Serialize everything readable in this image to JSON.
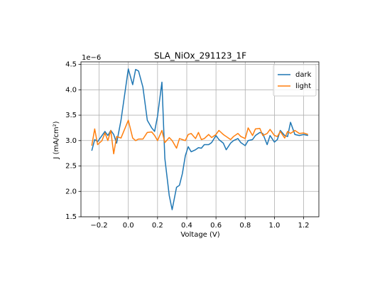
{
  "chart_data": {
    "type": "line",
    "title": "SLA_NiOx_291123_1F",
    "x_label": "Voltage (V)",
    "y_label": "J (mA/cm²)",
    "y_offset_label": "1e−6",
    "x": [
      -0.25,
      -0.23,
      -0.21,
      -0.18,
      -0.16,
      -0.14,
      -0.12,
      -0.1,
      -0.08,
      -0.05,
      0.0,
      0.03,
      0.05,
      0.07,
      0.1,
      0.13,
      0.16,
      0.18,
      0.2,
      0.23,
      0.25,
      0.28,
      0.3,
      0.33,
      0.35,
      0.37,
      0.39,
      0.41,
      0.43,
      0.46,
      0.48,
      0.5,
      0.52,
      0.55,
      0.57,
      0.6,
      0.62,
      0.65,
      0.67,
      0.7,
      0.72,
      0.75,
      0.77,
      0.8,
      0.82,
      0.85,
      0.87,
      0.9,
      0.92,
      0.95,
      0.97,
      1.0,
      1.02,
      1.04,
      1.07,
      1.09,
      1.11,
      1.14,
      1.17,
      1.2,
      1.23
    ],
    "series": [
      {
        "name": "dark",
        "color": "#1f77b4",
        "values": [
          2.8,
          3.02,
          2.98,
          3.1,
          3.18,
          3.1,
          3.2,
          3.12,
          2.95,
          3.4,
          4.41,
          4.1,
          4.4,
          4.37,
          4.05,
          3.4,
          3.25,
          3.18,
          3.48,
          4.15,
          2.65,
          1.92,
          1.64,
          2.08,
          2.12,
          2.35,
          2.7,
          2.88,
          2.78,
          2.82,
          2.86,
          2.85,
          2.92,
          2.92,
          2.96,
          3.1,
          3.02,
          2.95,
          2.82,
          2.95,
          3.0,
          3.04,
          2.96,
          2.9,
          3.0,
          3.02,
          3.1,
          3.16,
          3.14,
          2.92,
          3.1,
          2.97,
          3.02,
          3.2,
          3.1,
          3.08,
          3.36,
          3.12,
          3.1,
          3.12,
          3.1
        ]
      },
      {
        "name": "light",
        "color": "#ff7f0e",
        "values": [
          2.9,
          3.23,
          2.92,
          3.0,
          3.15,
          3.0,
          3.2,
          2.74,
          3.08,
          3.05,
          3.4,
          3.05,
          3.0,
          3.03,
          3.03,
          3.16,
          3.17,
          3.1,
          3.0,
          3.2,
          2.96,
          3.06,
          3.0,
          2.85,
          3.04,
          3.02,
          3.0,
          3.12,
          3.14,
          3.04,
          3.16,
          3.02,
          3.04,
          3.12,
          3.06,
          3.12,
          3.2,
          3.12,
          3.08,
          3.02,
          3.08,
          3.14,
          3.08,
          3.04,
          3.25,
          3.1,
          3.23,
          3.24,
          3.1,
          3.14,
          3.22,
          3.1,
          3.08,
          3.18,
          3.05,
          3.18,
          3.14,
          3.2,
          3.14,
          3.15,
          3.12
        ]
      }
    ],
    "xlim": [
      -0.324,
      1.304
    ],
    "ylim": [
      1.5,
      4.55
    ],
    "xticks": [
      {
        "value": -0.2,
        "label": "−0.2"
      },
      {
        "value": 0,
        "label": "0.0"
      },
      0.2,
      0.4,
      0.6,
      0.8,
      {
        "value": 1,
        "label": "1.0"
      },
      1.2
    ],
    "yticks": [
      1.5,
      {
        "value": 2,
        "label": "2.0"
      },
      2.5,
      {
        "value": 3,
        "label": "3.0"
      },
      3.5,
      {
        "value": 4,
        "label": "4.0"
      },
      4.5
    ],
    "grid": true,
    "legend": "upper right"
  }
}
